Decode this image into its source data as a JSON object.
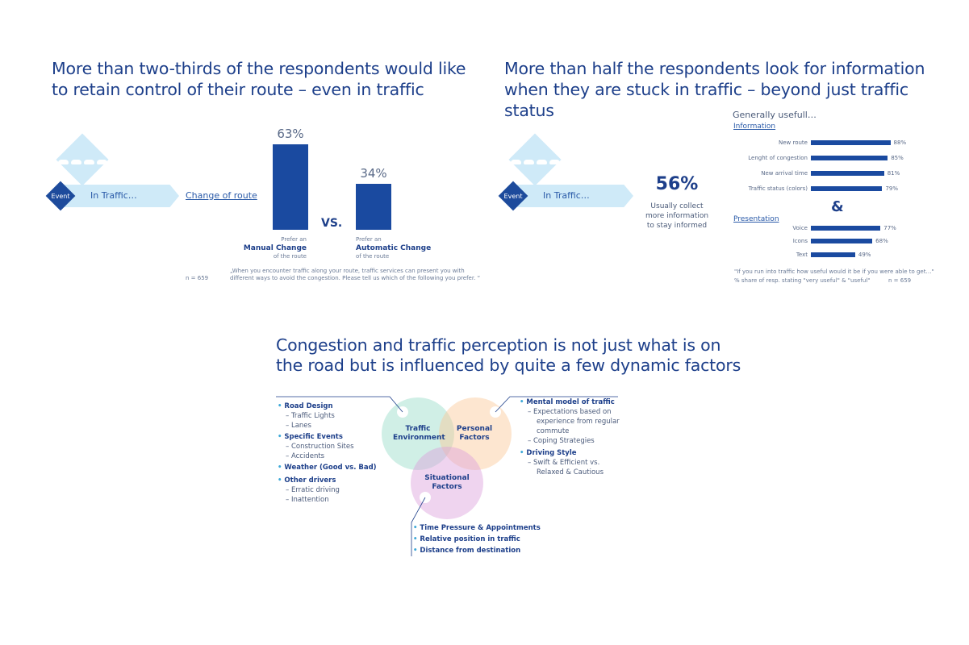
{
  "panel1": {
    "title_l1": "More than two-thirds of the respondents would like",
    "title_l2": "to retain control of their route – even in traffic",
    "event": "Event",
    "in_traffic": "In Traffic…",
    "change_route": "Change of route",
    "vs": "VS.",
    "n": "n = 659",
    "question_l1": "„When you encounter traffic along your route, traffic services can present you with",
    "question_l2": "different ways to avoid the congestion. Please tell us which of the following you prefer. “",
    "bars": [
      {
        "value": 63,
        "value_label": "63%",
        "prefer": "Prefer an",
        "name": "Manual Change",
        "sub": "of the route"
      },
      {
        "value": 34,
        "value_label": "34%",
        "prefer": "Prefer an",
        "name": "Automatic Change",
        "sub": "of the route"
      }
    ]
  },
  "panel2": {
    "title_l1": "More than half the respondents look for information",
    "title_l2": "when they are stuck in traffic – beyond just traffic",
    "title_l3": "status",
    "event": "Event",
    "in_traffic": "In Traffic…",
    "big_pct": "56%",
    "usually_l1": "Usually collect",
    "usually_l2": "more information",
    "usually_l3": "to stay informed",
    "chart_title": "Generally usefull…",
    "info_label": "Information",
    "presentation_label": "Presentation",
    "amp": "&",
    "footnote_l1": "\"If you run into traffic how useful would it be if you were able to get…\"",
    "footnote_l2": "% share of resp. stating \"very useful\" & \"useful\"",
    "n": "n = 659"
  },
  "chart_data": {
    "type": "bar",
    "title": "Generally usefull…",
    "groups": [
      {
        "name": "Information",
        "categories": [
          "New route",
          "Lenght of congestion",
          "New arrival time",
          "Traffic status (colors)"
        ],
        "values": [
          88,
          85,
          81,
          79
        ],
        "labels": [
          "88%",
          "85%",
          "81%",
          "79%"
        ]
      },
      {
        "name": "Presentation",
        "categories": [
          "Voice",
          "Icons",
          "Text"
        ],
        "values": [
          77,
          68,
          49
        ],
        "labels": [
          "77%",
          "68%",
          "49%"
        ]
      }
    ]
  },
  "panel3": {
    "title_l1": "Congestion and traffic perception is not just what is on",
    "title_l2": "the road but is influenced by quite a few dynamic factors",
    "circle_traffic_l1": "Traffic",
    "circle_traffic_l2": "Environment",
    "circle_personal_l1": "Personal",
    "circle_personal_l2": "Factors",
    "circle_situational_l1": "Situational",
    "circle_situational_l2": "Factors",
    "left_items": {
      "road_design": "Road Design",
      "traffic_lights": "Traffic Lights",
      "lanes": "Lanes",
      "specific_events": "Specific Events",
      "construction": "Construction Sites",
      "accidents": "Accidents",
      "weather": "Weather (Good vs. Bad)",
      "other_drivers": "Other drivers",
      "erratic": "Erratic driving",
      "inattention": "Inattention"
    },
    "right_items": {
      "mental_model": "Mental model of traffic",
      "expect_l1": "Expectations based on",
      "expect_l2": "experience from regular",
      "expect_l3": "commute",
      "coping": "Coping Strategies",
      "driving_style": "Driving Style",
      "swift": "Swift & Efficient vs.",
      "relaxed": "Relaxed & Cautious"
    },
    "bottom_items": {
      "time_pressure": "Time Pressure & Appointments",
      "relative": "Relative position in traffic",
      "distance": "Distance from destination"
    }
  }
}
